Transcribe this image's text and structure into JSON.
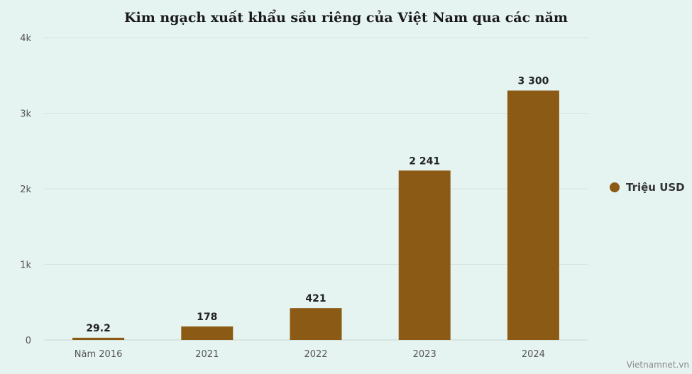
{
  "chart_data": {
    "type": "bar",
    "title": "Kim ngạch xuất khẩu sầu riêng của Việt Nam qua các năm",
    "categories": [
      "Năm 2016",
      "2021",
      "2022",
      "2023",
      "2024"
    ],
    "series": [
      {
        "name": "Triệu USD",
        "values": [
          29.2,
          178,
          421,
          2241,
          3300
        ],
        "value_labels": [
          "29.2",
          "178",
          "421",
          "2 241",
          "3 300"
        ],
        "color": "#8b5a14"
      }
    ],
    "ylim": [
      0,
      4000
    ],
    "y_ticks": [
      0,
      1000,
      2000,
      3000,
      4000
    ],
    "y_tick_labels": [
      "0",
      "1k",
      "2k",
      "3k",
      "4k"
    ],
    "grid": true,
    "legend_position": "right"
  },
  "credit": "Vietnamnet.vn",
  "colors": {
    "background": "#e6f4f1",
    "grid": "#d3e3df",
    "bar": "#8b5a14"
  }
}
